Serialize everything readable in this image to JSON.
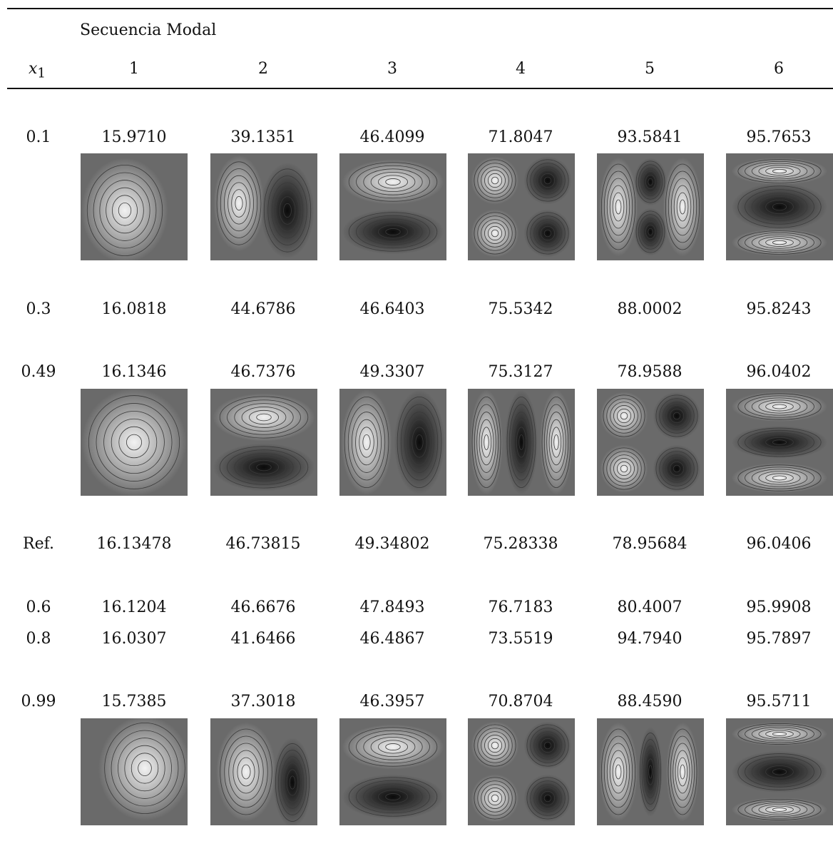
{
  "header": {
    "caption": "Secuencia Modal",
    "x_label": "x",
    "x_subscript": "1",
    "columns": [
      "1",
      "2",
      "3",
      "4",
      "5",
      "6"
    ]
  },
  "rows": [
    {
      "label": "0.1",
      "values": [
        "15.9710",
        "39.1351",
        "46.4099",
        "71.8047",
        "93.5841",
        "95.7653"
      ]
    },
    {
      "label": "0.3",
      "values": [
        "16.0818",
        "44.6786",
        "46.6403",
        "75.5342",
        "88.0002",
        "95.8243"
      ]
    },
    {
      "label": "0.49",
      "values": [
        "16.1346",
        "46.7376",
        "49.3307",
        "75.3127",
        "78.9588",
        "96.0402"
      ]
    },
    {
      "label": "Ref.",
      "values": [
        "16.13478",
        "46.73815",
        "49.34802",
        "75.28338",
        "78.95684",
        "96.0406"
      ]
    },
    {
      "label": "0.6",
      "values": [
        "16.1204",
        "46.6676",
        "47.8493",
        "76.7183",
        "80.4007",
        "95.9908"
      ]
    },
    {
      "label": "0.8",
      "values": [
        "16.0307",
        "41.6466",
        "46.4867",
        "73.5519",
        "94.7940",
        "95.7897"
      ]
    },
    {
      "label": "0.99",
      "values": [
        "15.7385",
        "37.3018",
        "46.3957",
        "70.8704",
        "88.4590",
        "95.5711"
      ]
    }
  ],
  "images": {
    "rows_with_images": [
      "0.1",
      "0.49",
      "0.99"
    ],
    "count_per_row": 6,
    "colors": {
      "dark": "#0a0a0a",
      "light": "#f2f2f2",
      "contour": "#3a3a3a"
    }
  }
}
